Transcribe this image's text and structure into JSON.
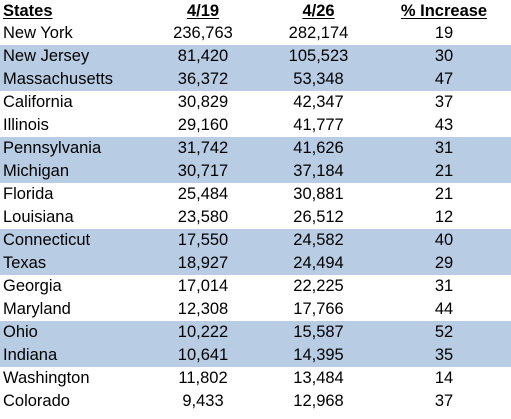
{
  "table": {
    "headers": {
      "state": "States",
      "col_419": "4/19",
      "col_426": "4/26",
      "increase": "% Increase"
    },
    "rows": [
      {
        "state": "New York",
        "v419": "236,763",
        "v426": "282,174",
        "increase": "19",
        "shaded": false
      },
      {
        "state": "New Jersey",
        "v419": "81,420",
        "v426": "105,523",
        "increase": "30",
        "shaded": true
      },
      {
        "state": "Massachusetts",
        "v419": "36,372",
        "v426": "53,348",
        "increase": "47",
        "shaded": true
      },
      {
        "state": "California",
        "v419": "30,829",
        "v426": "42,347",
        "increase": "37",
        "shaded": false
      },
      {
        "state": "Illinois",
        "v419": "29,160",
        "v426": "41,777",
        "increase": "43",
        "shaded": false
      },
      {
        "state": "Pennsylvania",
        "v419": "31,742",
        "v426": "41,626",
        "increase": "31",
        "shaded": true
      },
      {
        "state": "Michigan",
        "v419": "30,717",
        "v426": "37,184",
        "increase": "21",
        "shaded": true
      },
      {
        "state": "Florida",
        "v419": "25,484",
        "v426": "30,881",
        "increase": "21",
        "shaded": false
      },
      {
        "state": "Louisiana",
        "v419": "23,580",
        "v426": "26,512",
        "increase": "12",
        "shaded": false
      },
      {
        "state": "Connecticut",
        "v419": "17,550",
        "v426": "24,582",
        "increase": "40",
        "shaded": true
      },
      {
        "state": "Texas",
        "v419": "18,927",
        "v426": "24,494",
        "increase": "29",
        "shaded": true
      },
      {
        "state": "Georgia",
        "v419": "17,014",
        "v426": "22,225",
        "increase": "31",
        "shaded": false
      },
      {
        "state": "Maryland",
        "v419": "12,308",
        "v426": "17,766",
        "increase": "44",
        "shaded": false
      },
      {
        "state": "Ohio",
        "v419": "10,222",
        "v426": "15,587",
        "increase": "52",
        "shaded": true
      },
      {
        "state": "Indiana",
        "v419": "10,641",
        "v426": "14,395",
        "increase": "35",
        "shaded": true
      },
      {
        "state": "Washington",
        "v419": "11,802",
        "v426": "13,484",
        "increase": "14",
        "shaded": false
      },
      {
        "state": "Colorado",
        "v419": "9,433",
        "v426": "12,968",
        "increase": "37",
        "shaded": false
      }
    ],
    "shade_color": "#b8cce4"
  }
}
